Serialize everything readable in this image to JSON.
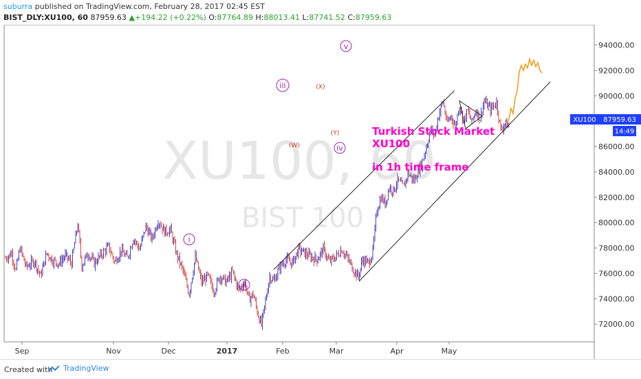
{
  "header": {
    "author": "suburra",
    "published_text": "published on TradingView.com, February 28, 2017 02:45 EST",
    "symbol": "BIST_DLY:XU100, 60",
    "last": "87959.63",
    "change": "+194.22 (+0.22%)",
    "ohlc": {
      "o_label": "O:",
      "o": "87764.89",
      "h_label": "H:",
      "h": "88013.41",
      "l_label": "L:",
      "l": "87741.52",
      "c_label": "C:",
      "c": "87959.63"
    }
  },
  "watermark": {
    "main": "XU100, 60",
    "sub": "BIST 100"
  },
  "annotation": {
    "line1": "Turkish Stock Market",
    "line2": "XU100",
    "line3": "in 1h time frame"
  },
  "price_tag": {
    "symbol": "XU100",
    "value": "87959.63",
    "time": "14:49"
  },
  "waves": {
    "i": "i",
    "ii": "ii",
    "iii": "iii",
    "iv": "iv",
    "v": "v",
    "w": "(W)",
    "x": "(X)",
    "y": "(Y)"
  },
  "colors": {
    "up": "#3f3fcf",
    "down": "#d04040",
    "projection": "#f0a020",
    "wave_label": "#9c27b0",
    "annotation": "#ff00cc",
    "tag": "#1f3fff"
  },
  "chart_data": {
    "type": "candlestick",
    "title": "",
    "ylim": [
      70600,
      95600
    ],
    "y_ticks": [
      72000,
      74000,
      76000,
      78000,
      80000,
      82000,
      84000,
      86000,
      88000,
      90000,
      92000,
      94000
    ],
    "y_tick_labels": [
      "72000.00",
      "74000.00",
      "76000.00",
      "78000.00",
      "80000.00",
      "82000.00",
      "84000.00",
      "86000.00",
      "88000.00",
      "90000.00",
      "92000.00",
      "94000.00"
    ],
    "x_labels": [
      "Sep",
      "Nov",
      "Dec",
      "2017",
      "Feb",
      "Mar",
      "Apr",
      "May"
    ],
    "price_path": [
      [
        0,
        77200
      ],
      [
        6,
        77600
      ],
      [
        10,
        76200
      ],
      [
        14,
        78000
      ],
      [
        20,
        76500
      ],
      [
        28,
        77000
      ],
      [
        34,
        75800
      ],
      [
        40,
        77600
      ],
      [
        46,
        77000
      ],
      [
        52,
        76800
      ],
      [
        58,
        77400
      ],
      [
        64,
        76800
      ],
      [
        70,
        79900
      ],
      [
        74,
        76600
      ],
      [
        80,
        77600
      ],
      [
        86,
        76800
      ],
      [
        94,
        77600
      ],
      [
        100,
        78100
      ],
      [
        106,
        76900
      ],
      [
        112,
        77800
      ],
      [
        118,
        77200
      ],
      [
        124,
        78800
      ],
      [
        130,
        77900
      ],
      [
        136,
        79700
      ],
      [
        142,
        78700
      ],
      [
        148,
        80200
      ],
      [
        154,
        79300
      ],
      [
        160,
        79400
      ],
      [
        166,
        77500
      ],
      [
        172,
        76200
      ],
      [
        178,
        74400
      ],
      [
        184,
        77300
      ],
      [
        190,
        75300
      ],
      [
        196,
        75800
      ],
      [
        202,
        74600
      ],
      [
        208,
        75800
      ],
      [
        214,
        75300
      ],
      [
        220,
        76100
      ],
      [
        226,
        74700
      ],
      [
        232,
        75300
      ],
      [
        236,
        73900
      ],
      [
        240,
        74400
      ],
      [
        244,
        73000
      ],
      [
        248,
        71900
      ],
      [
        252,
        73800
      ],
      [
        256,
        75800
      ],
      [
        260,
        75400
      ],
      [
        266,
        76500
      ],
      [
        272,
        77100
      ],
      [
        278,
        76800
      ],
      [
        284,
        77900
      ],
      [
        290,
        77600
      ],
      [
        296,
        77300
      ],
      [
        302,
        77100
      ],
      [
        308,
        77900
      ],
      [
        314,
        76900
      ],
      [
        320,
        77300
      ],
      [
        326,
        77900
      ],
      [
        332,
        77100
      ],
      [
        338,
        76200
      ],
      [
        342,
        75700
      ],
      [
        346,
        77100
      ],
      [
        352,
        76800
      ],
      [
        356,
        77700
      ],
      [
        360,
        81000
      ],
      [
        364,
        82000
      ],
      [
        368,
        81500
      ],
      [
        372,
        82800
      ],
      [
        376,
        82500
      ],
      [
        380,
        83300
      ],
      [
        386,
        82800
      ],
      [
        390,
        83900
      ],
      [
        396,
        83300
      ],
      [
        400,
        84100
      ],
      [
        404,
        84800
      ],
      [
        408,
        86000
      ],
      [
        412,
        87300
      ],
      [
        416,
        86900
      ],
      [
        420,
        88500
      ],
      [
        424,
        89600
      ],
      [
        428,
        87800
      ],
      [
        432,
        88400
      ],
      [
        436,
        87600
      ],
      [
        440,
        89300
      ],
      [
        444,
        88000
      ],
      [
        448,
        88800
      ],
      [
        452,
        87900
      ],
      [
        456,
        88900
      ],
      [
        460,
        88200
      ],
      [
        464,
        89600
      ],
      [
        470,
        88900
      ],
      [
        476,
        89500
      ],
      [
        480,
        87300
      ],
      [
        484,
        87800
      ],
      [
        488,
        87600
      ]
    ],
    "projection_path": [
      [
        486,
        87800
      ],
      [
        488,
        88200
      ],
      [
        490,
        89000
      ],
      [
        492,
        88600
      ],
      [
        494,
        89800
      ],
      [
        496,
        90400
      ],
      [
        498,
        91900
      ],
      [
        500,
        92400
      ],
      [
        502,
        92000
      ],
      [
        504,
        92500
      ],
      [
        506,
        92200
      ],
      [
        508,
        92900
      ],
      [
        510,
        92400
      ],
      [
        512,
        92800
      ],
      [
        514,
        92300
      ],
      [
        516,
        92600
      ],
      [
        518,
        92000
      ],
      [
        520,
        91800
      ]
    ],
    "channel_upper": [
      [
        260,
        76300
      ],
      [
        435,
        90400
      ]
    ],
    "channel_lower": [
      [
        343,
        75400
      ],
      [
        528,
        91100
      ]
    ],
    "triangle": [
      [
        440,
        89600
      ],
      [
        462,
        88400
      ],
      [
        446,
        87400
      ]
    ],
    "last_price": 87959.63
  }
}
